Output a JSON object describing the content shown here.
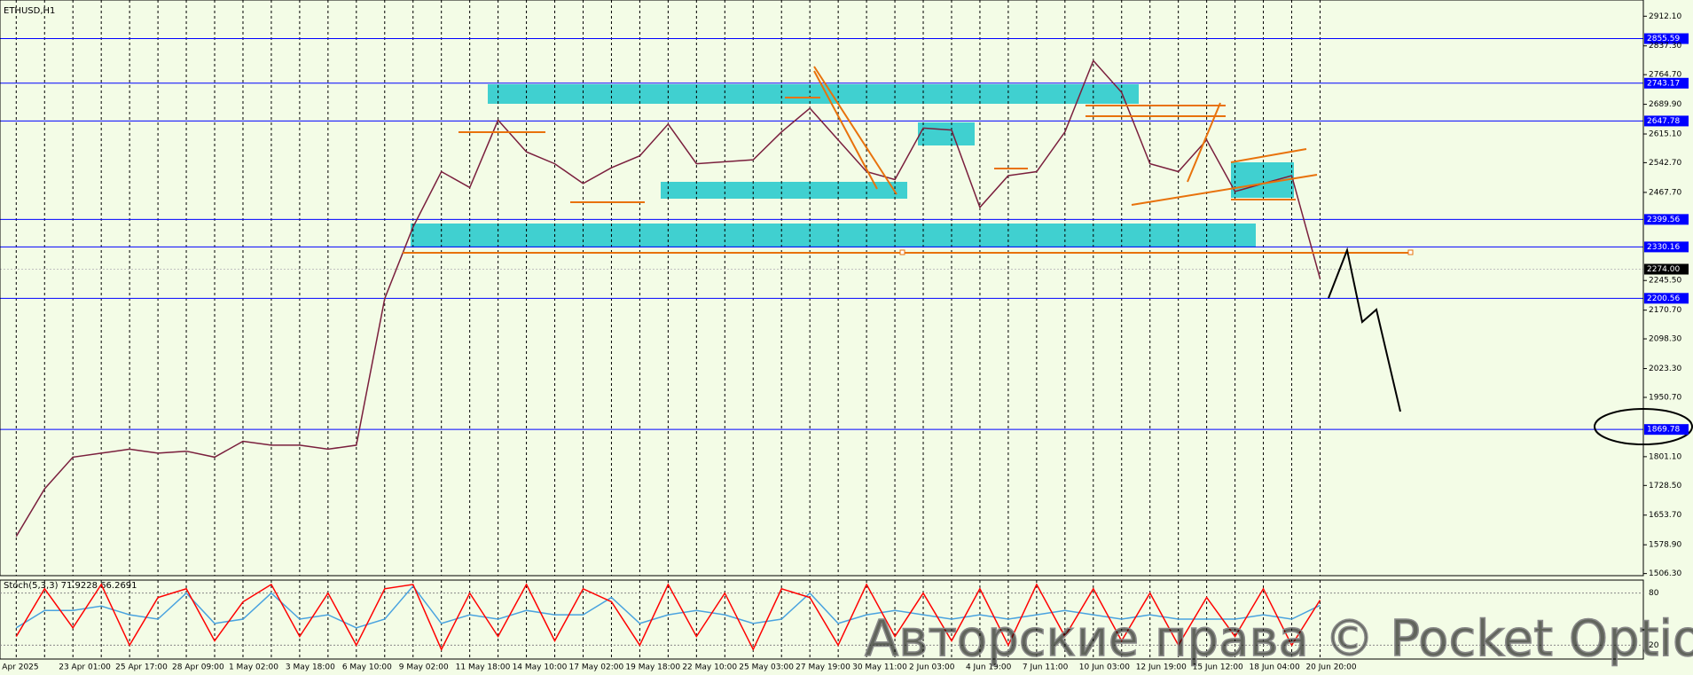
{
  "chart_data": {
    "type": "line",
    "title": "ETHUSD,H1",
    "categories": [
      "Apr 2025",
      null,
      "23 Apr 01:00",
      null,
      "25 Apr 17:00",
      null,
      "28 Apr 09:00",
      null,
      "1 May 02:00",
      null,
      "3 May 18:00",
      null,
      "6 May 10:00",
      null,
      "9 May 02:00",
      null,
      "11 May 18:00",
      null,
      "14 May 10:00",
      null,
      "17 May 02:00",
      null,
      "19 May 18:00",
      null,
      "22 May 10:00",
      null,
      "25 May 03:00",
      null,
      "27 May 19:00",
      null,
      "30 May 11:00",
      null,
      "2 Jun 03:00",
      null,
      "4 Jun 19:00",
      null,
      "7 Jun 11:00",
      null,
      "10 Jun 03:00",
      null,
      "12 Jun 19:00",
      null,
      "15 Jun 12:00",
      null,
      "18 Jun 04:00",
      null,
      "20 Jun 20:00"
    ],
    "series": [
      {
        "color": "#7a1f3d",
        "values": [
          1600,
          1720,
          1800,
          1810,
          1820,
          1810,
          1815,
          1800,
          1840,
          1830,
          1830,
          1820,
          1830,
          2200,
          2380,
          2520,
          2480,
          2650,
          2570,
          2540,
          2490,
          2530,
          2560,
          2640,
          2540,
          2545,
          2550,
          2620,
          2680,
          2600,
          2520,
          2500,
          2630,
          2625,
          2430,
          2510,
          2520,
          2620,
          2800,
          2720,
          2540,
          2520,
          2600,
          2470,
          2490,
          2510,
          2250
        ]
      }
    ],
    "ylim": [
      1501,
      2953
    ],
    "yticks": [
      {
        "value": 2912.1,
        "label": "2912.10"
      },
      {
        "value": 2837.3,
        "label": "2837.30"
      },
      {
        "value": 2764.7,
        "label": "2764.70"
      },
      {
        "value": 2689.9,
        "label": "2689.90"
      },
      {
        "value": 2615.1,
        "label": "2615.10"
      },
      {
        "value": 2542.7,
        "label": "2542.70"
      },
      {
        "value": 2467.7,
        "label": "2467.70"
      },
      {
        "value": 2245.5,
        "label": "2245.50"
      },
      {
        "value": 2170.7,
        "label": "2170.70"
      },
      {
        "value": 2098.3,
        "label": "2098.30"
      },
      {
        "value": 2023.3,
        "label": "2023.30"
      },
      {
        "value": 1950.7,
        "label": "1950.70"
      },
      {
        "value": 1801.1,
        "label": "1801.10"
      },
      {
        "value": 1728.5,
        "label": "1728.50"
      },
      {
        "value": 1653.7,
        "label": "1653.70"
      },
      {
        "value": 1578.9,
        "label": "1578.90"
      },
      {
        "value": 1506.3,
        "label": "1506.30"
      }
    ],
    "levels": {
      "color": "#0000ff",
      "values": [
        2855.59,
        2743.17,
        2647.78,
        2399.56,
        2330.16,
        2200.56,
        1869.78
      ]
    },
    "current_price": {
      "value": 2274,
      "label": "2274.00"
    },
    "grid": true,
    "watermark": "Авторские права © Pocket Option",
    "indicator": {
      "type": "line",
      "label": "Stoch(5,3,3) 71.9228 66.2691",
      "ylim": [
        4,
        95
      ],
      "yticks": [
        80,
        20
      ],
      "series": [
        {
          "color": "#ff0000",
          "values": [
            30,
            85,
            40,
            90,
            20,
            75,
            85,
            25,
            70,
            90,
            30,
            80,
            20,
            85,
            90,
            15,
            80,
            30,
            90,
            25,
            85,
            70,
            20,
            90,
            30,
            80,
            15,
            85,
            75,
            20,
            90,
            30,
            80,
            25,
            85,
            20,
            90,
            30,
            85,
            25,
            80,
            20,
            75,
            30,
            85,
            20,
            72
          ]
        },
        {
          "color": "#4aa3df",
          "values": [
            40,
            60,
            60,
            65,
            55,
            50,
            80,
            45,
            50,
            80,
            50,
            55,
            40,
            50,
            88,
            45,
            55,
            50,
            60,
            55,
            55,
            75,
            45,
            55,
            60,
            55,
            45,
            50,
            80,
            45,
            55,
            60,
            55,
            50,
            55,
            50,
            55,
            60,
            55,
            50,
            55,
            50,
            50,
            50,
            55,
            50,
            66
          ]
        }
      ]
    }
  }
}
